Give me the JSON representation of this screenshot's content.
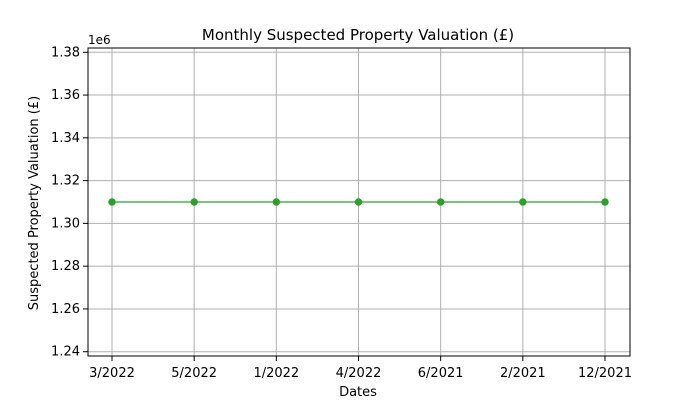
{
  "chart_data": {
    "type": "line",
    "title": "Monthly Suspected Property Valuation (£)",
    "xlabel": "Dates",
    "ylabel": "Suspected Property Valuation (£)",
    "y_offset_label": "1e6",
    "categories": [
      "3/2022",
      "5/2022",
      "1/2022",
      "4/2022",
      "6/2021",
      "2/2021",
      "12/2021"
    ],
    "series": [
      {
        "values": [
          1310000,
          1310000,
          1310000,
          1310000,
          1310000,
          1310000,
          1310000
        ],
        "color": "#2ca02c"
      }
    ],
    "ylim": [
      1238000,
      1382000
    ],
    "y_ticks": [
      1240000,
      1260000,
      1280000,
      1300000,
      1320000,
      1340000,
      1360000,
      1380000
    ],
    "y_tick_labels": [
      "1.24",
      "1.26",
      "1.28",
      "1.30",
      "1.32",
      "1.34",
      "1.36",
      "1.38"
    ],
    "grid": true,
    "marker": "circle",
    "line_color": "#2ca02c",
    "marker_color": "#2ca02c"
  }
}
